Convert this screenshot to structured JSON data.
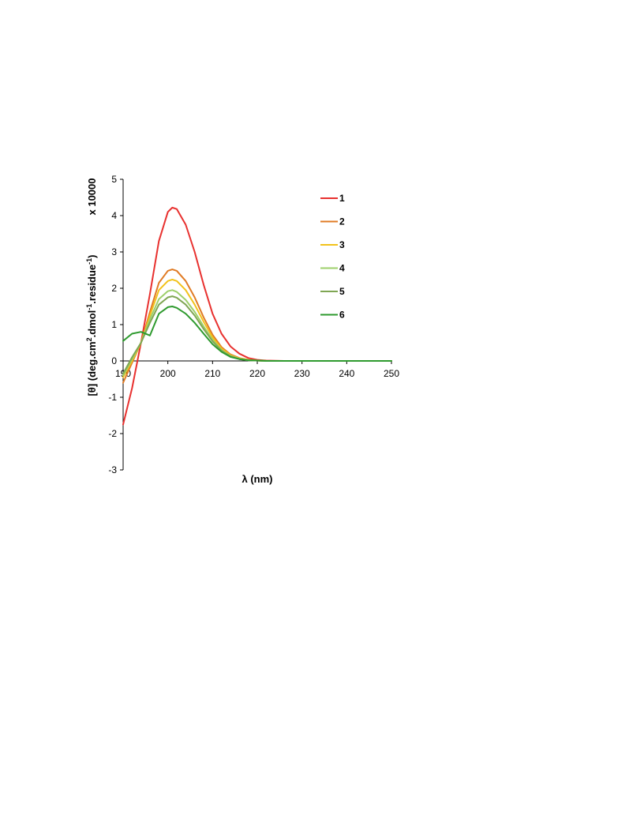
{
  "chart_data": {
    "type": "line",
    "title": "",
    "xlabel": "λ (nm)",
    "ylabel_main": "[θ]  (deg.cm",
    "ylabel_sup1": "2",
    "ylabel_mid": ".dmol",
    "ylabel_sup2": "-1",
    "ylabel_tail": ".residue",
    "ylabel_sup3": "-1",
    "ylabel_close": ")",
    "ylabel_multiplier": "x 10000",
    "xlim": [
      190,
      250
    ],
    "ylim": [
      -3,
      5
    ],
    "xticks": [
      190,
      200,
      210,
      220,
      230,
      240,
      250
    ],
    "yticks": [
      -3,
      -2,
      -1,
      0,
      1,
      2,
      3,
      4,
      5
    ],
    "xtick_labels": [
      "190",
      "200",
      "210",
      "220",
      "230",
      "240",
      "250"
    ],
    "ytick_labels": [
      "-3",
      "-2",
      "-1",
      "0",
      "1",
      "2",
      "3",
      "4",
      "5"
    ],
    "grid": false,
    "legend_position": "top-right",
    "x": [
      190,
      192,
      194,
      196,
      198,
      200,
      201,
      202,
      204,
      206,
      208,
      210,
      212,
      214,
      216,
      218,
      220,
      222,
      226,
      230,
      235,
      240,
      245,
      250
    ],
    "series": [
      {
        "name": "1",
        "color": "#e8312f",
        "values": [
          -1.75,
          -0.75,
          0.5,
          1.85,
          3.3,
          4.1,
          4.22,
          4.18,
          3.75,
          3.0,
          2.1,
          1.3,
          0.75,
          0.4,
          0.2,
          0.08,
          0.03,
          0.01,
          0.0,
          0.0,
          0.0,
          0.0,
          0.0,
          0.0
        ]
      },
      {
        "name": "2",
        "color": "#e07b24",
        "values": [
          -0.6,
          -0.05,
          0.5,
          1.35,
          2.15,
          2.48,
          2.52,
          2.48,
          2.2,
          1.75,
          1.2,
          0.72,
          0.38,
          0.18,
          0.08,
          0.03,
          0.01,
          0.0,
          0.0,
          0.0,
          0.0,
          0.0,
          0.0,
          0.0
        ]
      },
      {
        "name": "3",
        "color": "#f2c21b",
        "values": [
          -0.45,
          0.0,
          0.5,
          1.25,
          1.95,
          2.2,
          2.24,
          2.2,
          1.95,
          1.55,
          1.08,
          0.65,
          0.34,
          0.16,
          0.07,
          0.03,
          0.01,
          0.0,
          0.0,
          0.0,
          0.0,
          0.0,
          0.0,
          0.0
        ]
      },
      {
        "name": "4",
        "color": "#9dcf6a",
        "values": [
          -0.4,
          0.05,
          0.5,
          1.15,
          1.7,
          1.92,
          1.95,
          1.9,
          1.68,
          1.35,
          0.95,
          0.58,
          0.3,
          0.14,
          0.06,
          0.02,
          0.01,
          0.0,
          0.0,
          0.0,
          0.0,
          0.0,
          0.0,
          0.0
        ]
      },
      {
        "name": "5",
        "color": "#7fa653",
        "values": [
          -0.35,
          0.1,
          0.5,
          1.05,
          1.55,
          1.75,
          1.78,
          1.74,
          1.55,
          1.25,
          0.88,
          0.54,
          0.28,
          0.13,
          0.05,
          0.02,
          0.01,
          0.0,
          0.0,
          0.0,
          0.0,
          0.0,
          0.0,
          0.0
        ]
      },
      {
        "name": "6",
        "color": "#2e9a2e",
        "values": [
          0.55,
          0.75,
          0.8,
          0.7,
          1.3,
          1.48,
          1.5,
          1.46,
          1.3,
          1.05,
          0.75,
          0.46,
          0.25,
          0.11,
          0.05,
          0.02,
          0.01,
          0.0,
          0.0,
          0.0,
          0.0,
          0.0,
          0.0,
          0.0
        ]
      }
    ]
  }
}
